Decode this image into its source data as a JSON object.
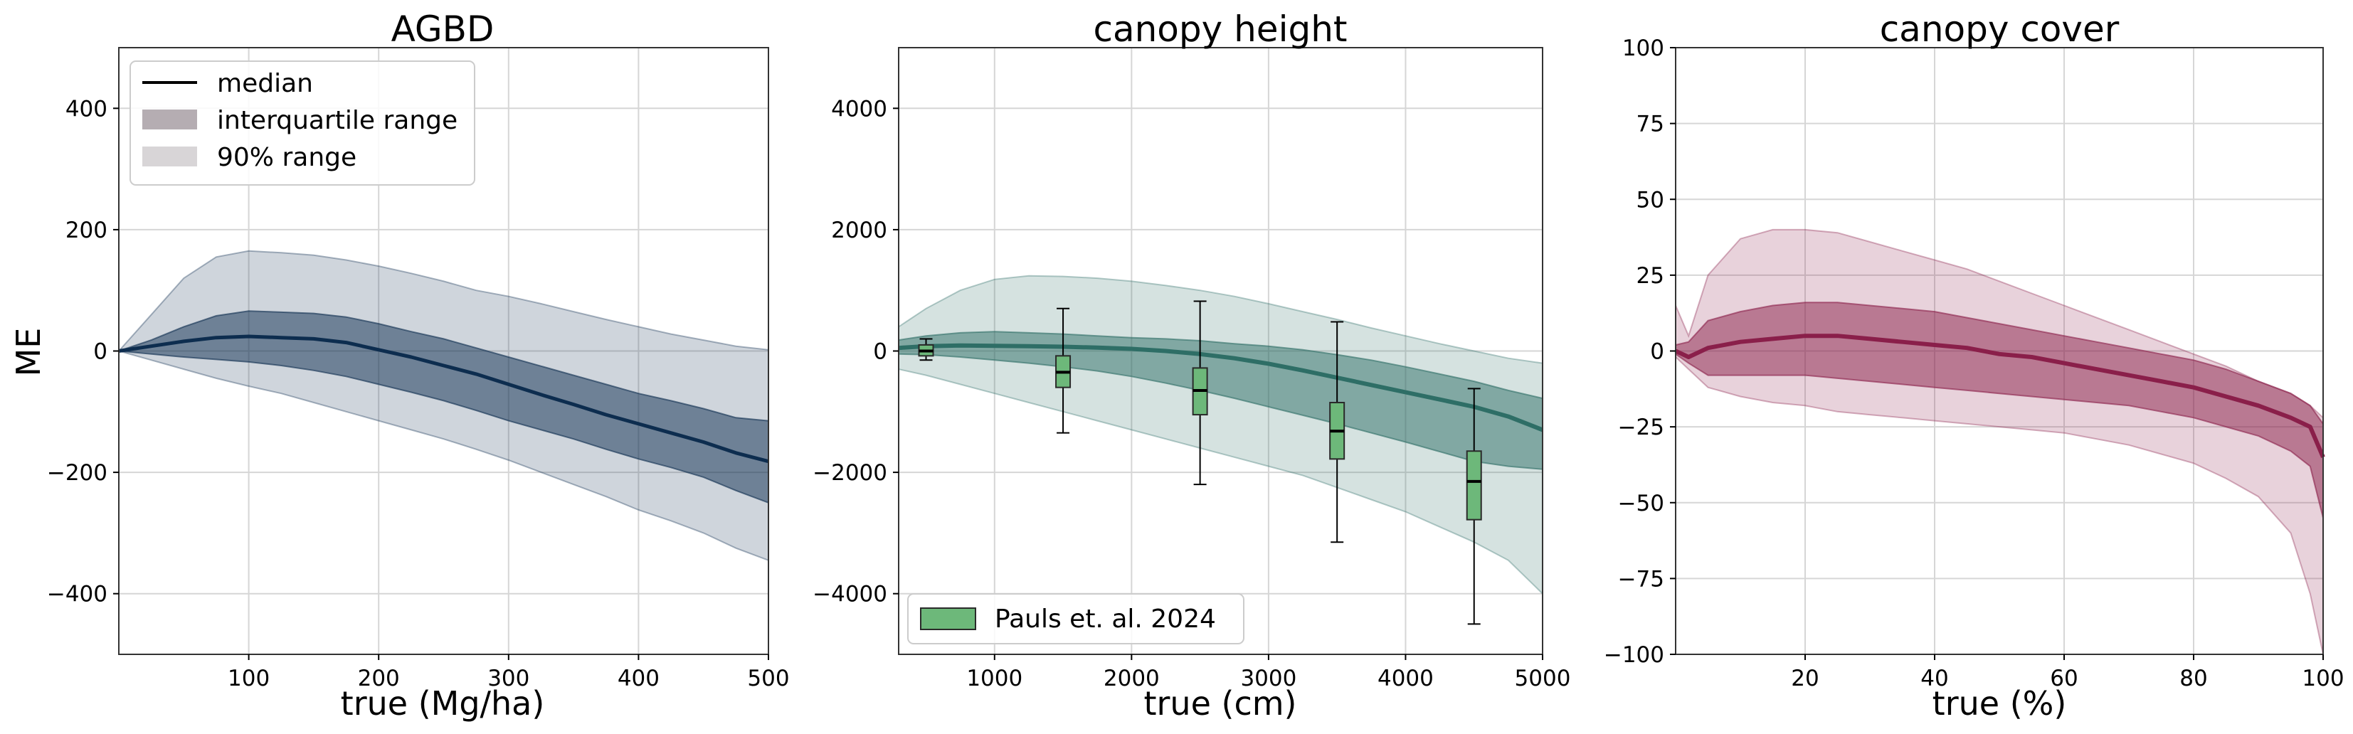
{
  "chart_data": [
    {
      "type": "area",
      "title": "AGBD",
      "xlabel": "true (Mg/ha)",
      "ylabel": "ME",
      "xlim": [
        0,
        500
      ],
      "ylim": [
        -500,
        500
      ],
      "xticks": [
        100,
        200,
        300,
        400,
        500
      ],
      "xtick_labels": [
        "100",
        "200",
        "300",
        "400",
        "500"
      ],
      "yticks": [
        -400,
        -200,
        0,
        200,
        400
      ],
      "ytick_labels": [
        "−400",
        "−200",
        "0",
        "200",
        "400"
      ],
      "color": "#0d2d4f",
      "legend": {
        "placement": "top-left",
        "entries": [
          "median",
          "interquartile range",
          "90% range"
        ]
      },
      "x": [
        0,
        25,
        50,
        75,
        100,
        125,
        150,
        175,
        200,
        225,
        250,
        275,
        300,
        325,
        350,
        375,
        400,
        425,
        450,
        475,
        500
      ],
      "median": [
        0,
        8,
        16,
        22,
        24,
        22,
        20,
        14,
        2,
        -10,
        -24,
        -38,
        -55,
        -72,
        -88,
        -105,
        -120,
        -135,
        -150,
        -168,
        -182
      ],
      "q25": [
        0,
        -5,
        -10,
        -14,
        -18,
        -24,
        -32,
        -42,
        -55,
        -68,
        -82,
        -98,
        -115,
        -130,
        -145,
        -162,
        -178,
        -192,
        -208,
        -230,
        -250
      ],
      "q75": [
        0,
        18,
        40,
        58,
        66,
        64,
        62,
        56,
        45,
        32,
        20,
        5,
        -10,
        -25,
        -40,
        -55,
        -70,
        -82,
        -95,
        -110,
        -115
      ],
      "p05": [
        0,
        -15,
        -30,
        -45,
        -58,
        -70,
        -85,
        -100,
        -115,
        -130,
        -145,
        -162,
        -180,
        -200,
        -220,
        -240,
        -262,
        -280,
        -300,
        -325,
        -345
      ],
      "p95": [
        0,
        60,
        120,
        155,
        165,
        162,
        158,
        150,
        140,
        128,
        115,
        100,
        90,
        78,
        65,
        52,
        40,
        28,
        18,
        8,
        2
      ]
    },
    {
      "type": "area",
      "title": "canopy height",
      "xlabel": "true (cm)",
      "ylabel": "",
      "xlim": [
        300,
        5000
      ],
      "ylim": [
        -5000,
        5000
      ],
      "xticks": [
        1000,
        2000,
        3000,
        4000,
        5000
      ],
      "xtick_labels": [
        "1000",
        "2000",
        "3000",
        "4000",
        "5000"
      ],
      "yticks": [
        -4000,
        -2000,
        0,
        2000,
        4000
      ],
      "ytick_labels": [
        "−4000",
        "−2000",
        "0",
        "2000",
        "4000"
      ],
      "color": "#2e6e66",
      "legend": {
        "placement": "bottom-left",
        "entries": [
          "Pauls et. al. 2024"
        ]
      },
      "x": [
        300,
        500,
        750,
        1000,
        1250,
        1500,
        1750,
        2000,
        2250,
        2500,
        2750,
        3000,
        3250,
        3500,
        3750,
        4000,
        4250,
        4500,
        4750,
        5000
      ],
      "median": [
        50,
        80,
        90,
        85,
        80,
        70,
        55,
        35,
        0,
        -50,
        -120,
        -210,
        -320,
        -440,
        -560,
        -680,
        -800,
        -920,
        -1080,
        -1300
      ],
      "q25": [
        -50,
        -60,
        -100,
        -150,
        -200,
        -260,
        -330,
        -420,
        -530,
        -650,
        -780,
        -920,
        -1060,
        -1200,
        -1350,
        -1500,
        -1660,
        -1820,
        -1900,
        -1950
      ],
      "q75": [
        180,
        250,
        300,
        320,
        300,
        280,
        250,
        220,
        200,
        170,
        120,
        80,
        20,
        -60,
        -150,
        -260,
        -380,
        -500,
        -650,
        -780
      ],
      "p05": [
        -300,
        -400,
        -550,
        -700,
        -850,
        -1000,
        -1150,
        -1300,
        -1450,
        -1600,
        -1750,
        -1900,
        -2050,
        -2250,
        -2450,
        -2650,
        -2900,
        -3150,
        -3450,
        -4000
      ],
      "p95": [
        400,
        700,
        1000,
        1180,
        1240,
        1230,
        1200,
        1150,
        1080,
        1000,
        900,
        780,
        650,
        520,
        380,
        250,
        120,
        0,
        -120,
        -200
      ],
      "boxes": [
        {
          "x": 500,
          "whisker_low": -150,
          "q1": -80,
          "median": 0,
          "q3": 100,
          "whisker_high": 200
        },
        {
          "x": 1500,
          "whisker_low": -1350,
          "q1": -600,
          "median": -350,
          "q3": -80,
          "whisker_high": 700
        },
        {
          "x": 2500,
          "whisker_low": -2200,
          "q1": -1050,
          "median": -650,
          "q3": -280,
          "whisker_high": 820
        },
        {
          "x": 3500,
          "whisker_low": -3150,
          "q1": -1780,
          "median": -1320,
          "q3": -850,
          "whisker_high": 480
        },
        {
          "x": 4500,
          "whisker_low": -4500,
          "q1": -2780,
          "median": -2150,
          "q3": -1650,
          "whisker_high": -620
        }
      ]
    },
    {
      "type": "area",
      "title": "canopy cover",
      "xlabel": "true (%)",
      "ylabel": "",
      "xlim": [
        0,
        100
      ],
      "ylim": [
        -100,
        100
      ],
      "xticks": [
        20,
        40,
        60,
        80,
        100
      ],
      "xtick_labels": [
        "20",
        "40",
        "60",
        "80",
        "100"
      ],
      "yticks": [
        -100,
        -75,
        -50,
        -25,
        0,
        25,
        50,
        75,
        100
      ],
      "ytick_labels": [
        "−100",
        "−75",
        "−50",
        "−25",
        "0",
        "25",
        "50",
        "75",
        "100"
      ],
      "color": "#8a1f4a",
      "x": [
        0,
        2,
        5,
        10,
        15,
        20,
        25,
        30,
        35,
        40,
        45,
        50,
        55,
        60,
        65,
        70,
        75,
        80,
        85,
        90,
        95,
        98,
        100
      ],
      "median": [
        0,
        -2,
        1,
        3,
        4,
        5,
        5,
        4,
        3,
        2,
        1,
        -1,
        -2,
        -4,
        -6,
        -8,
        -10,
        -12,
        -15,
        -18,
        -22,
        -25,
        -35
      ],
      "q25": [
        -1,
        -4,
        -8,
        -8,
        -8,
        -8,
        -9,
        -10,
        -11,
        -12,
        -13,
        -14,
        -15,
        -16,
        -17,
        -18,
        -20,
        -22,
        -25,
        -28,
        -33,
        -38,
        -55
      ],
      "q75": [
        2,
        3,
        10,
        13,
        15,
        16,
        16,
        15,
        14,
        13,
        11,
        9,
        7,
        5,
        3,
        1,
        -1,
        -3,
        -6,
        -10,
        -14,
        -18,
        -24
      ],
      "p05": [
        -2,
        -6,
        -12,
        -15,
        -17,
        -18,
        -20,
        -21,
        -22,
        -23,
        -24,
        -25,
        -26,
        -27,
        -29,
        -31,
        -34,
        -37,
        -42,
        -48,
        -60,
        -80,
        -100
      ],
      "p95": [
        15,
        5,
        25,
        37,
        40,
        40,
        39,
        36,
        33,
        30,
        27,
        23,
        19,
        15,
        11,
        7,
        3,
        -1,
        -5,
        -10,
        -14,
        -18,
        -22
      ]
    }
  ]
}
